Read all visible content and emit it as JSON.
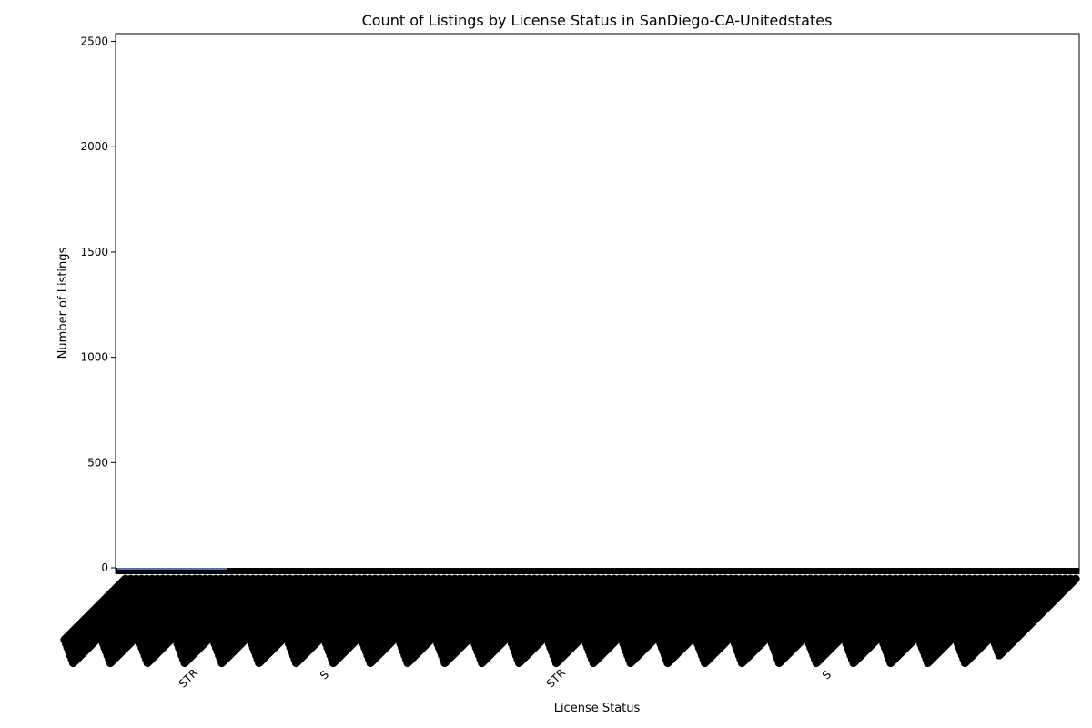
{
  "chart_data": {
    "type": "bar",
    "title": "Count of Listings by License Status in SanDiego-CA-Unitedstates",
    "xlabel": "License Status",
    "ylabel": "Number of Listings",
    "ylim": [
      0,
      2537
    ],
    "y_ticks": [
      0,
      500,
      1000,
      1500,
      2000,
      2500
    ],
    "x_tick_labels_visible": [
      "STR",
      "S",
      "STR",
      "S"
    ],
    "n_categories_approx": 1200,
    "values_note": "All visible bars have near-zero counts; the y-axis range reaches about 2500, implying a tall bar not discernible in the rendering.",
    "bar_color": "#4c72b0",
    "grid": false,
    "legend": "none"
  }
}
